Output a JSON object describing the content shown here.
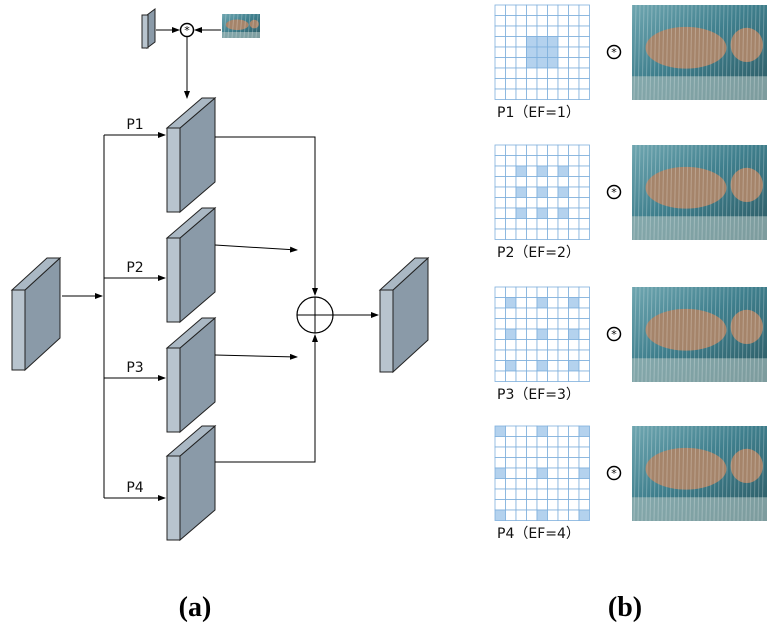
{
  "panel_a": {
    "label": "(a)",
    "branches": [
      "P1",
      "P2",
      "P3",
      "P4"
    ]
  },
  "panel_b": {
    "label": "(b)",
    "captions": [
      "P1（EF=1）",
      "P2（EF=2）",
      "P3（EF=3）",
      "P4（EF=4）"
    ]
  }
}
